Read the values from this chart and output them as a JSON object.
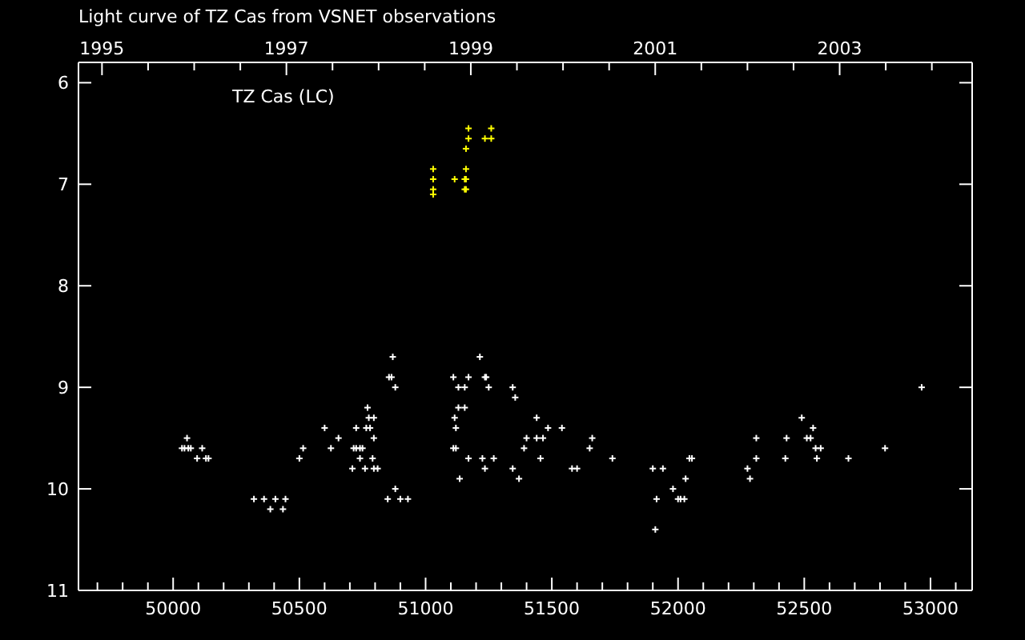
{
  "chart_data": {
    "type": "scatter",
    "title": "Light curve of TZ Cas from VSNET observations",
    "annotations": [
      "TZ Cas (LC)"
    ],
    "marker": "cross",
    "xlim": [
      49625,
      53165
    ],
    "xticks": [
      {
        "value": 49700,
        "label": null
      },
      {
        "value": 49800,
        "label": null
      },
      {
        "value": 49900,
        "label": null
      },
      50000,
      {
        "value": 50100,
        "label": null
      },
      {
        "value": 50200,
        "label": null
      },
      {
        "value": 50300,
        "label": null
      },
      {
        "value": 50400,
        "label": null
      },
      50500,
      {
        "value": 50600,
        "label": null
      },
      {
        "value": 50700,
        "label": null
      },
      {
        "value": 50800,
        "label": null
      },
      {
        "value": 50900,
        "label": null
      },
      51000,
      {
        "value": 51100,
        "label": null
      },
      {
        "value": 51200,
        "label": null
      },
      {
        "value": 51300,
        "label": null
      },
      {
        "value": 51400,
        "label": null
      },
      51500,
      {
        "value": 51600,
        "label": null
      },
      {
        "value": 51700,
        "label": null
      },
      {
        "value": 51800,
        "label": null
      },
      {
        "value": 51900,
        "label": null
      },
      52000,
      {
        "value": 52100,
        "label": null
      },
      {
        "value": 52200,
        "label": null
      },
      {
        "value": 52300,
        "label": null
      },
      {
        "value": 52400,
        "label": null
      },
      52500,
      {
        "value": 52600,
        "label": null
      },
      {
        "value": 52700,
        "label": null
      },
      {
        "value": 52800,
        "label": null
      },
      {
        "value": 52900,
        "label": null
      },
      53000,
      {
        "value": 53100,
        "label": null
      }
    ],
    "x2lim": [
      1994.745,
      2004.437
    ],
    "x2ticks": [
      1995,
      {
        "value": 1995.5,
        "label": null
      },
      {
        "value": 1996,
        "label": null
      },
      {
        "value": 1996.5,
        "label": null
      },
      1997,
      {
        "value": 1997.5,
        "label": null
      },
      {
        "value": 1998,
        "label": null
      },
      {
        "value": 1998.5,
        "label": null
      },
      1999,
      {
        "value": 1999.5,
        "label": null
      },
      {
        "value": 2000,
        "label": null
      },
      {
        "value": 2000.5,
        "label": null
      },
      2001,
      {
        "value": 2001.5,
        "label": null
      },
      {
        "value": 2002,
        "label": null
      },
      {
        "value": 2002.5,
        "label": null
      },
      2003,
      {
        "value": 2003.5,
        "label": null
      },
      {
        "value": 2004,
        "label": null
      }
    ],
    "ylim": [
      11,
      5.8
    ],
    "yticks": [
      6,
      7,
      8,
      9,
      10,
      11
    ],
    "series": [
      {
        "color": "#ffffff",
        "x": [
          50870,
          50855,
          50865,
          50880,
          50770,
          50775,
          50795,
          50600,
          50725,
          50765,
          50780,
          50655,
          50795,
          50055,
          50035,
          50045,
          50060,
          50070,
          50115,
          50515,
          50625,
          50715,
          50725,
          50740,
          50750,
          50095,
          50130,
          50140,
          50500,
          50740,
          50790,
          50710,
          50760,
          50795,
          50810,
          50880,
          50850,
          50900,
          50930,
          50320,
          50360,
          50405,
          50445,
          50385,
          50435,
          51215,
          51110,
          51170,
          51235,
          51240,
          51130,
          51155,
          51250,
          51345,
          51355,
          51130,
          51155,
          51115,
          51440,
          51120,
          51485,
          51540,
          51400,
          51440,
          51465,
          51660,
          51110,
          51120,
          51390,
          51650,
          51170,
          51225,
          51270,
          51455,
          51740,
          51235,
          51345,
          51580,
          51600,
          51900,
          51940,
          52045,
          52055,
          51135,
          51370,
          52030,
          51980,
          51915,
          52000,
          52010,
          52025,
          51910,
          52275,
          52285,
          52310,
          52310,
          52425,
          52430,
          52490,
          52535,
          52510,
          52525,
          52545,
          52565,
          52550,
          52675,
          52820,
          52965
        ],
        "values": [
          8.7,
          8.9,
          8.9,
          9.0,
          9.2,
          9.3,
          9.3,
          9.4,
          9.4,
          9.4,
          9.4,
          9.5,
          9.5,
          9.5,
          9.6,
          9.6,
          9.6,
          9.6,
          9.6,
          9.6,
          9.6,
          9.6,
          9.6,
          9.6,
          9.6,
          9.7,
          9.7,
          9.7,
          9.7,
          9.7,
          9.7,
          9.8,
          9.8,
          9.8,
          9.8,
          10.0,
          10.1,
          10.1,
          10.1,
          10.1,
          10.1,
          10.1,
          10.1,
          10.2,
          10.2,
          8.7,
          8.9,
          8.9,
          8.9,
          8.9,
          9.0,
          9.0,
          9.0,
          9.0,
          9.1,
          9.2,
          9.2,
          9.3,
          9.3,
          9.4,
          9.4,
          9.4,
          9.5,
          9.5,
          9.5,
          9.5,
          9.6,
          9.6,
          9.6,
          9.6,
          9.7,
          9.7,
          9.7,
          9.7,
          9.7,
          9.8,
          9.8,
          9.8,
          9.8,
          9.8,
          9.8,
          9.7,
          9.7,
          9.9,
          9.9,
          9.9,
          10.0,
          10.1,
          10.1,
          10.1,
          10.1,
          10.4,
          9.8,
          9.9,
          9.5,
          9.7,
          9.7,
          9.5,
          9.3,
          9.4,
          9.5,
          9.5,
          9.6,
          9.6,
          9.7,
          9.7,
          9.6,
          9.0
        ]
      },
      {
        "color": "#ffff00",
        "x": [
          51030,
          51030,
          51030,
          51030,
          51170,
          51260,
          51170,
          51235,
          51260,
          51160,
          51160,
          51115,
          51155,
          51160,
          51155,
          51160
        ],
        "values": [
          6.85,
          6.95,
          7.05,
          7.1,
          6.45,
          6.45,
          6.55,
          6.55,
          6.55,
          6.65,
          6.85,
          6.95,
          6.95,
          6.95,
          7.05,
          7.05
        ]
      }
    ]
  }
}
